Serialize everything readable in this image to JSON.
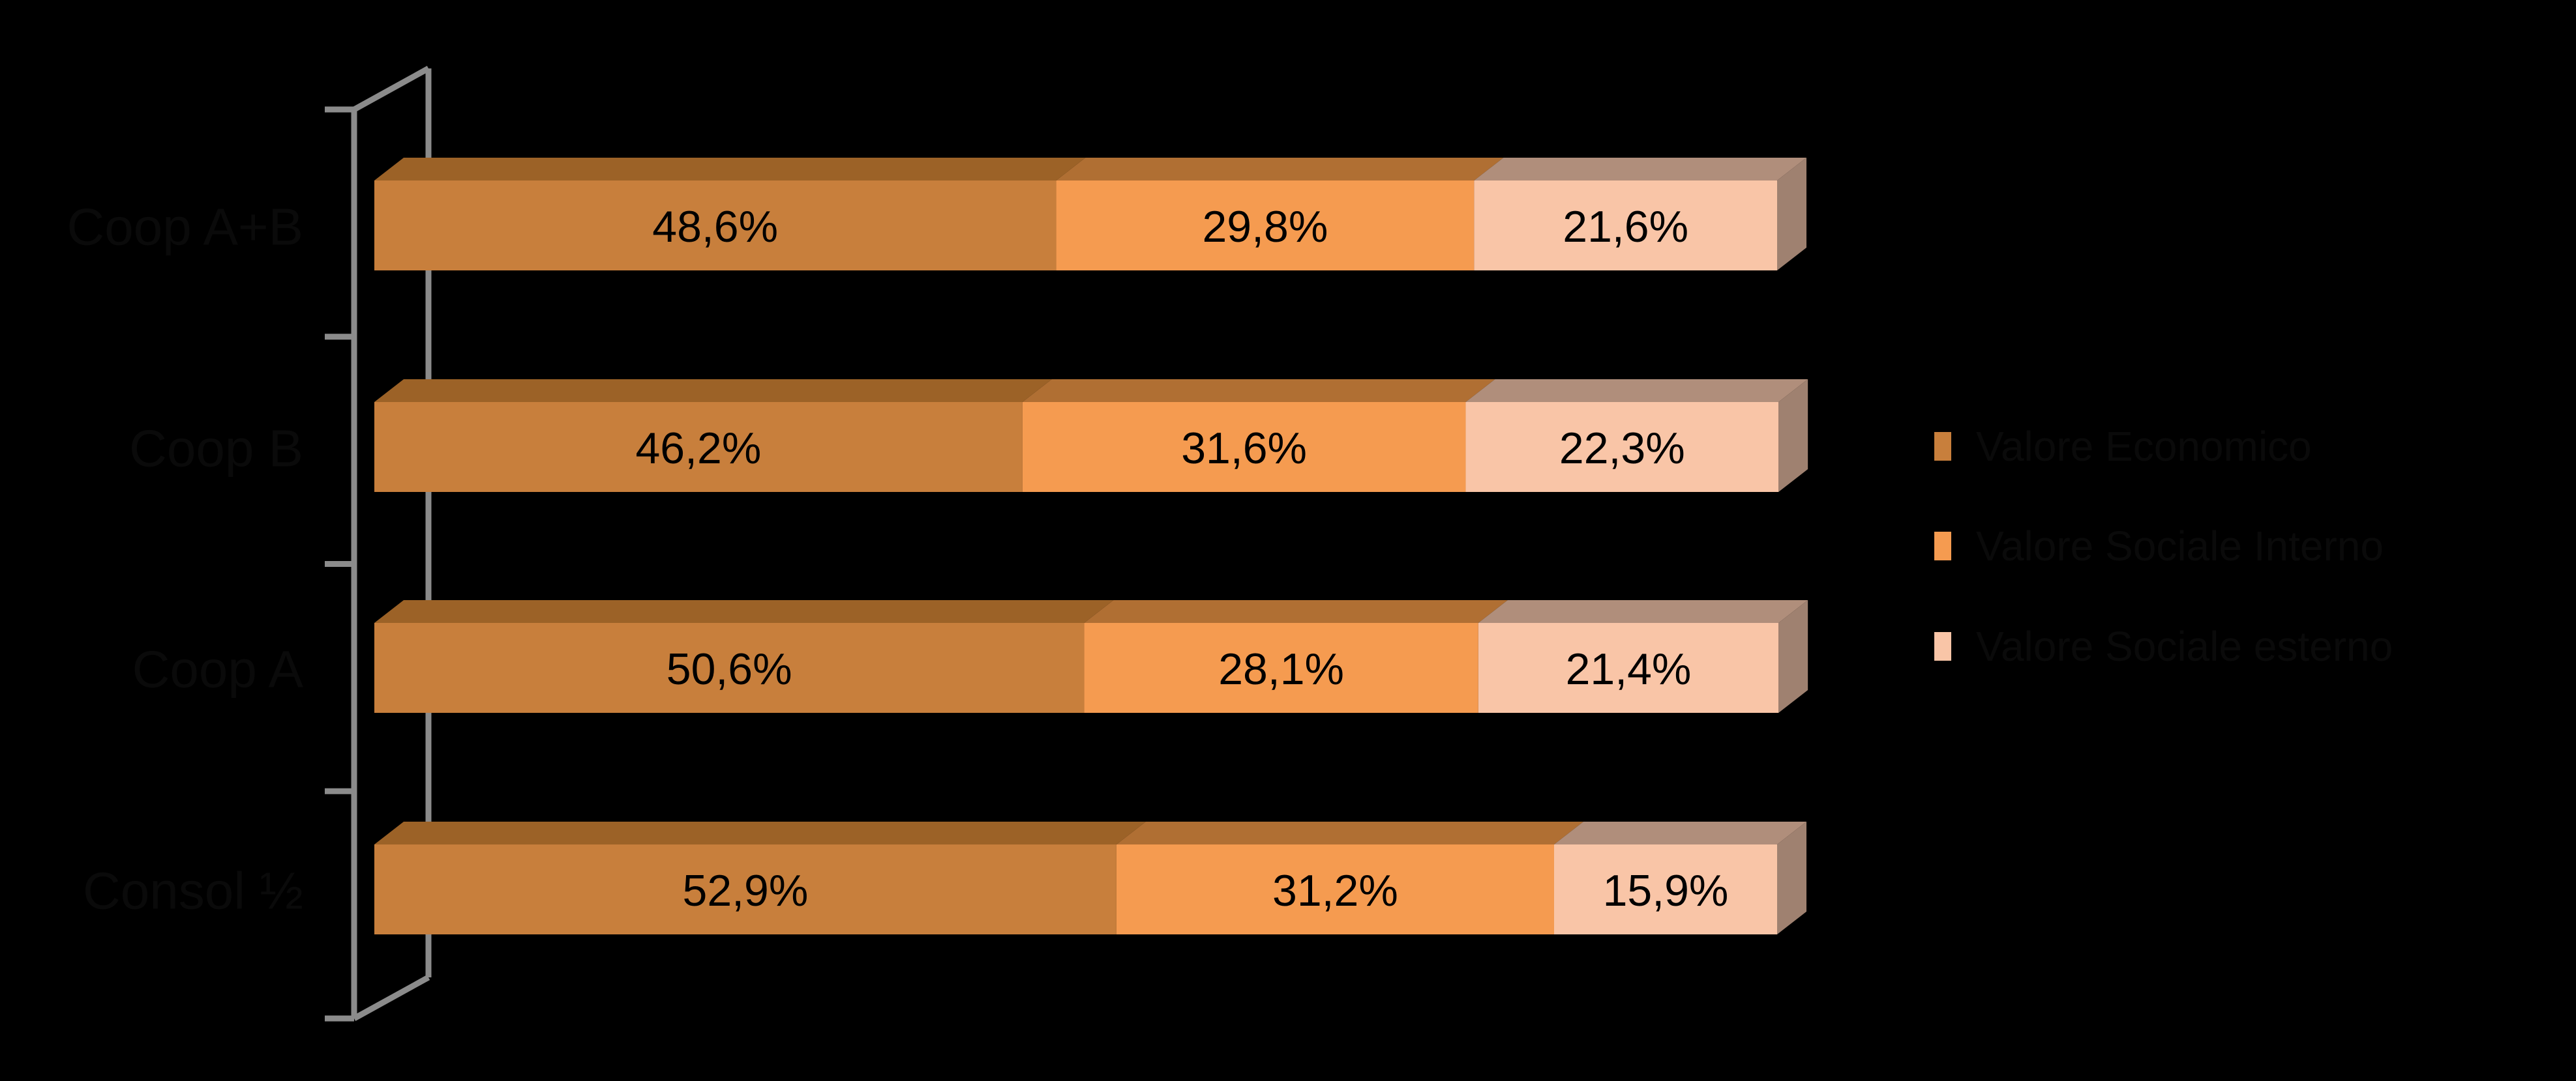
{
  "chart_data": {
    "type": "bar",
    "orientation": "horizontal",
    "stacked": true,
    "style_3d": true,
    "unit": "%",
    "decimal_separator": ",",
    "background_color": "#000000",
    "axis_frame_color": "#8B8B8B",
    "category_text_color": "#0A0A0A",
    "legend_text_color": "#0A0A0A",
    "value_label_color": "#000000",
    "xlim": [
      0,
      100
    ],
    "grid": false,
    "legend_position": "right",
    "categories": [
      "Coop A+B",
      "Coop B",
      "Coop A",
      "Consol ½"
    ],
    "series": [
      {
        "name": "Valore Economico",
        "color": "#C87F3C",
        "top_shade": "#9C6227",
        "values": [
          48.6,
          46.2,
          50.6,
          52.9
        ],
        "labels": [
          "48,6%",
          "46,2%",
          "50,6%",
          "52,9%"
        ]
      },
      {
        "name": "Valore Sociale Interno",
        "color": "#F59B50",
        "top_shade": "#B06F33",
        "values": [
          29.8,
          31.6,
          28.1,
          31.2
        ],
        "labels": [
          "29,8%",
          "31,6%",
          "28,1%",
          "31,2%"
        ]
      },
      {
        "name": "Valore Sociale esterno",
        "color": "#F9C5A7",
        "top_shade": "#B08E7B",
        "side_shade": "#9F8170",
        "values": [
          21.6,
          22.3,
          21.4,
          15.9
        ],
        "labels": [
          "21,6%",
          "22,3%",
          "21,4%",
          "15,9%"
        ]
      }
    ]
  }
}
